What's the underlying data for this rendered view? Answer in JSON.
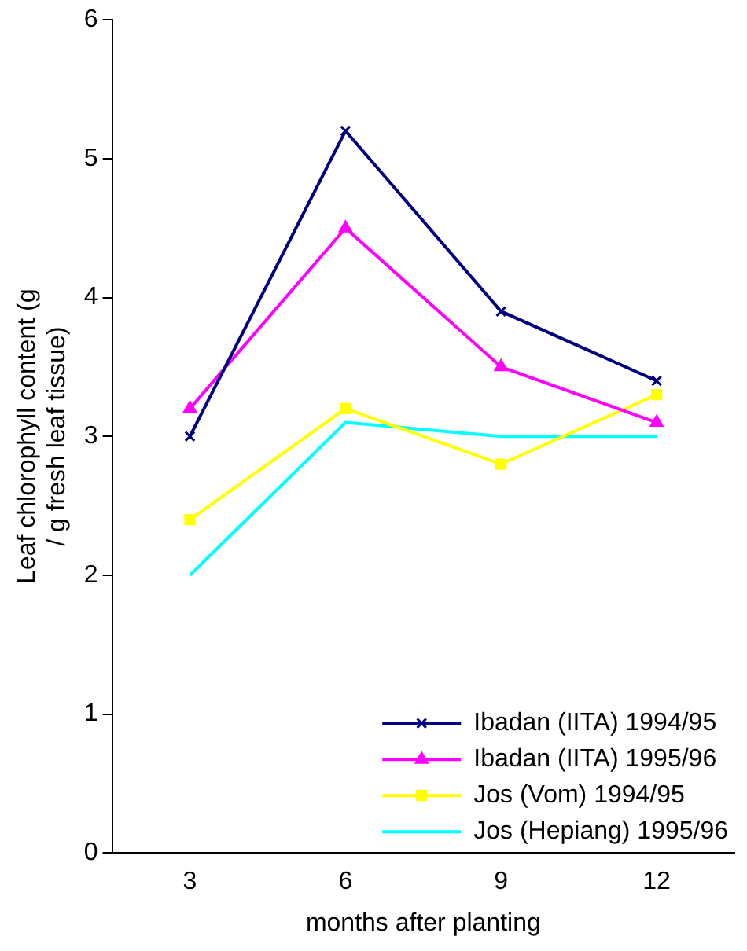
{
  "chart_data": {
    "type": "line",
    "xlabel": "months after planting",
    "ylabel": "Leaf chlorophyll content (g / g fresh leaf tissue)",
    "categories": [
      "3",
      "6",
      "9",
      "12"
    ],
    "ylim": [
      0,
      6
    ],
    "yticks": [
      0,
      1,
      2,
      3,
      4,
      5,
      6
    ],
    "grid": false,
    "legend": "bottom right",
    "series": [
      {
        "name": "Ibadan (IITA) 1994/95",
        "color": "#000080",
        "marker": "cross",
        "values": [
          3.0,
          5.2,
          3.9,
          3.4
        ]
      },
      {
        "name": "Ibadan (IITA) 1995/96",
        "color": "#ff00ff",
        "marker": "triangle",
        "values": [
          3.2,
          4.5,
          3.5,
          3.1
        ]
      },
      {
        "name": "Jos (Vom) 1994/95",
        "color": "#ffff00",
        "marker": "square",
        "values": [
          2.4,
          3.2,
          2.8,
          3.3
        ]
      },
      {
        "name": "Jos (Hepiang) 1995/96",
        "color": "#00ffff",
        "marker": "none",
        "values": [
          2.0,
          3.1,
          3.0,
          3.0
        ]
      }
    ]
  }
}
